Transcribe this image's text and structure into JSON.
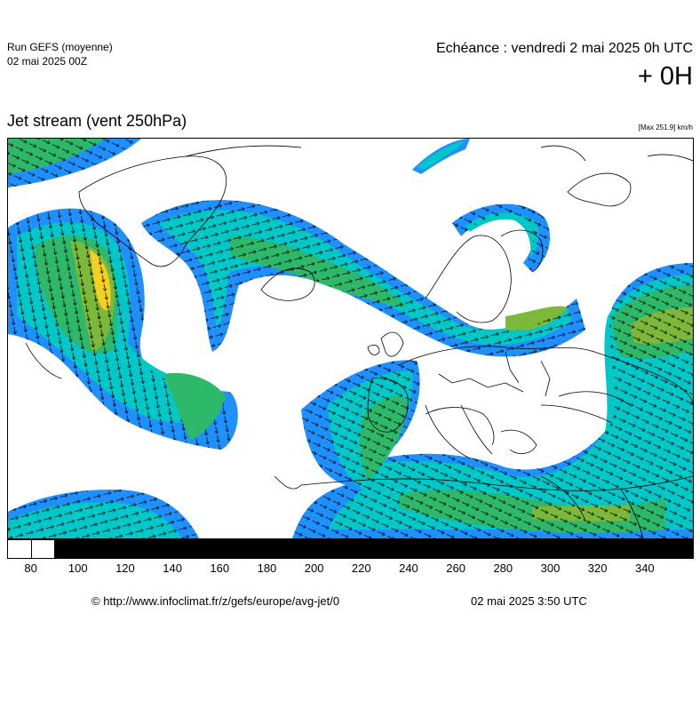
{
  "header": {
    "run_name": "Run GEFS (moyenne)",
    "run_date": "02 mai 2025 00Z",
    "echeance": "Echéance : vendredi 2 mai 2025 0h UTC",
    "offset": "+ 0H"
  },
  "map": {
    "title": "Jet stream (vent 250hPa)",
    "max_label": "[Max 251.9] km/h"
  },
  "colorbar": {
    "unit": "km/h",
    "ticks": [
      "80",
      "100",
      "120",
      "140",
      "160",
      "180",
      "200",
      "220",
      "240",
      "260",
      "280",
      "300",
      "320",
      "340"
    ],
    "segments": [
      {
        "from": 70,
        "to": 80,
        "color": "#ffffff"
      },
      {
        "from": 80,
        "to": 90,
        "color": "#ffffff"
      },
      {
        "from": 90,
        "to": 360,
        "color": "#000000"
      }
    ]
  },
  "jet_colors": {
    "blue": "#1e90ff",
    "cyan": "#00c8c8",
    "green": "#2eb86a",
    "olive": "#7cb83a",
    "yellow": "#f5d020"
  },
  "footer": {
    "source": "© http://www.infoclimat.fr/z/gefs/europe/avg-jet/0",
    "issued": "02 mai 2025  3:50 UTC"
  }
}
